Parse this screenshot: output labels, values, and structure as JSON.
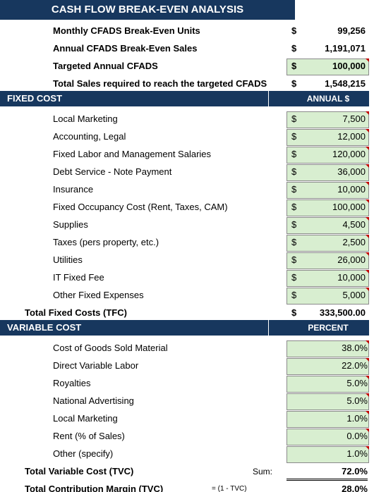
{
  "header": {
    "title": "CASH FLOW BREAK-EVEN ANALYSIS"
  },
  "summary": [
    {
      "label": "Monthly CFADS Break-Even Units",
      "currency": "$",
      "value": "99,256"
    },
    {
      "label": "Annual CFADS Break-Even Sales",
      "currency": "$",
      "value": "1,191,071"
    },
    {
      "label": "Targeted Annual CFADS",
      "currency": "$",
      "value": "100,000"
    },
    {
      "label": "Total Sales required to reach the targeted CFADS",
      "currency": "$",
      "value": "1,548,215"
    }
  ],
  "fixed_cost": {
    "title": "FIXED COST",
    "column": "ANNUAL $",
    "items": [
      {
        "label": "Local Marketing",
        "currency": "$",
        "value": "7,500"
      },
      {
        "label": "Accounting, Legal",
        "currency": "$",
        "value": "12,000"
      },
      {
        "label": "Fixed Labor and Management Salaries",
        "currency": "$",
        "value": "120,000"
      },
      {
        "label": "Debt Service - Note Payment",
        "currency": "$",
        "value": "36,000"
      },
      {
        "label": "Insurance",
        "currency": "$",
        "value": "10,000"
      },
      {
        "label": "Fixed Occupancy Cost (Rent, Taxes, CAM)",
        "currency": "$",
        "value": "100,000"
      },
      {
        "label": "Supplies",
        "currency": "$",
        "value": "4,500"
      },
      {
        "label": "Taxes (pers property, etc.)",
        "currency": "$",
        "value": "2,500"
      },
      {
        "label": "Utilities",
        "currency": "$",
        "value": "26,000"
      },
      {
        "label": "IT Fixed Fee",
        "currency": "$",
        "value": "10,000"
      },
      {
        "label": "Other Fixed Expenses",
        "currency": "$",
        "value": "5,000"
      }
    ],
    "total": {
      "label": "Total Fixed Costs (TFC)",
      "currency": "$",
      "value": "333,500.00"
    }
  },
  "variable_cost": {
    "title": "VARIABLE COST",
    "column": "PERCENT",
    "items": [
      {
        "label": "Cost of Goods Sold Material",
        "value": "38.0%"
      },
      {
        "label": "Direct Variable Labor",
        "value": "22.0%"
      },
      {
        "label": "Royalties",
        "value": "5.0%"
      },
      {
        "label": "National Advertising",
        "value": "5.0%"
      },
      {
        "label": "Local Marketing",
        "value": "1.0%"
      },
      {
        "label": "Rent (% of Sales)",
        "value": "0.0%"
      },
      {
        "label": "Other (specify)",
        "value": "1.0%"
      }
    ],
    "total": {
      "label": "Total Variable Cost (TVC)",
      "note": "Sum:",
      "value": "72.0%"
    },
    "margin": {
      "label": "Total Contribution Margin (TVC)",
      "note": "= (1 - TVC)",
      "value": "28.0%"
    }
  }
}
